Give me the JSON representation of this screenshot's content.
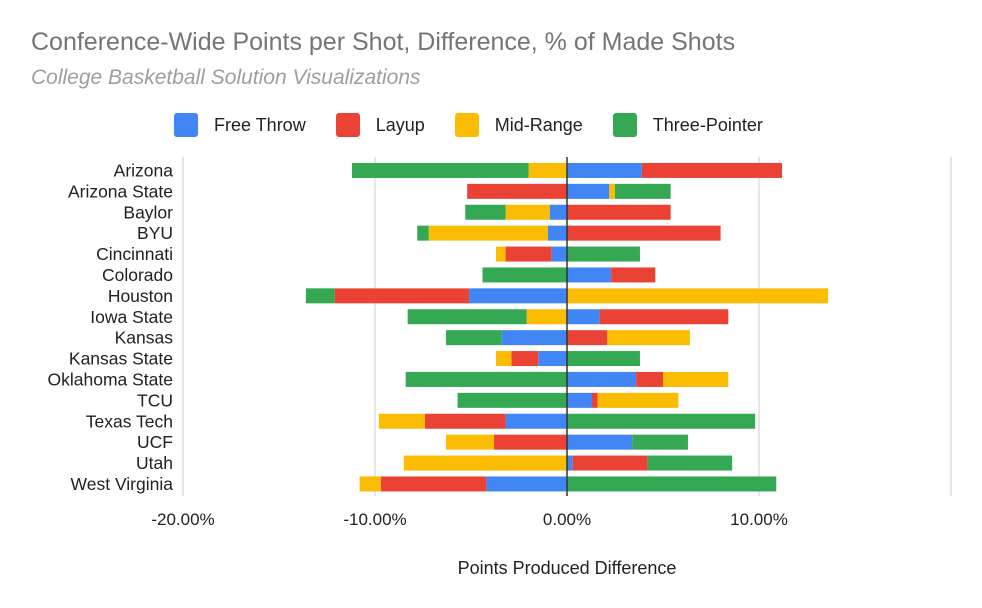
{
  "chart_data": {
    "type": "bar",
    "orientation": "horizontal",
    "stacked": "diverging",
    "title": "Conference-Wide Points per Shot, Difference, % of Made Shots",
    "subtitle": "College Basketball Solution Visualizations",
    "xlabel": "Points Produced Difference",
    "ylabel": "",
    "xlim": [
      -20,
      20
    ],
    "xticks": [
      -20,
      -10,
      0,
      10
    ],
    "xtick_labels": [
      "-20.00%",
      "-10.00%",
      "0.00%",
      "10.00%"
    ],
    "grid": true,
    "legend_position": "top",
    "categories": [
      "Arizona",
      "Arizona State",
      "Baylor",
      "BYU",
      "Cincinnati",
      "Colorado",
      "Houston",
      "Iowa State",
      "Kansas",
      "Kansas State",
      "Oklahoma State",
      "TCU",
      "Texas Tech",
      "UCF",
      "Utah",
      "West Virginia"
    ],
    "series": [
      {
        "name": "Free Throw",
        "color": "#4285f4",
        "values": [
          3.9,
          2.2,
          -0.9,
          -1.0,
          -0.8,
          2.3,
          -5.1,
          1.7,
          -3.4,
          -1.5,
          3.6,
          1.3,
          -3.2,
          3.4,
          0.3,
          -4.2
        ]
      },
      {
        "name": "Layup",
        "color": "#ea4335",
        "values": [
          7.3,
          -5.2,
          5.4,
          8.0,
          -2.4,
          2.3,
          -7.0,
          6.7,
          2.1,
          -1.4,
          1.4,
          0.3,
          -4.2,
          -3.8,
          3.9,
          -5.5
        ]
      },
      {
        "name": "Mid-Range",
        "color": "#fbbc04",
        "values": [
          -2.0,
          0.3,
          -2.3,
          -6.2,
          -0.5,
          0.0,
          13.6,
          -2.1,
          4.3,
          -0.8,
          3.4,
          4.2,
          -2.4,
          -2.5,
          -8.5,
          -1.1
        ]
      },
      {
        "name": "Three-Pointer",
        "color": "#34a853",
        "values": [
          -9.2,
          2.9,
          -2.1,
          -0.6,
          3.8,
          -4.4,
          -1.5,
          -6.2,
          -2.9,
          3.8,
          -8.4,
          -5.7,
          9.8,
          2.9,
          4.4,
          10.9
        ]
      }
    ]
  }
}
